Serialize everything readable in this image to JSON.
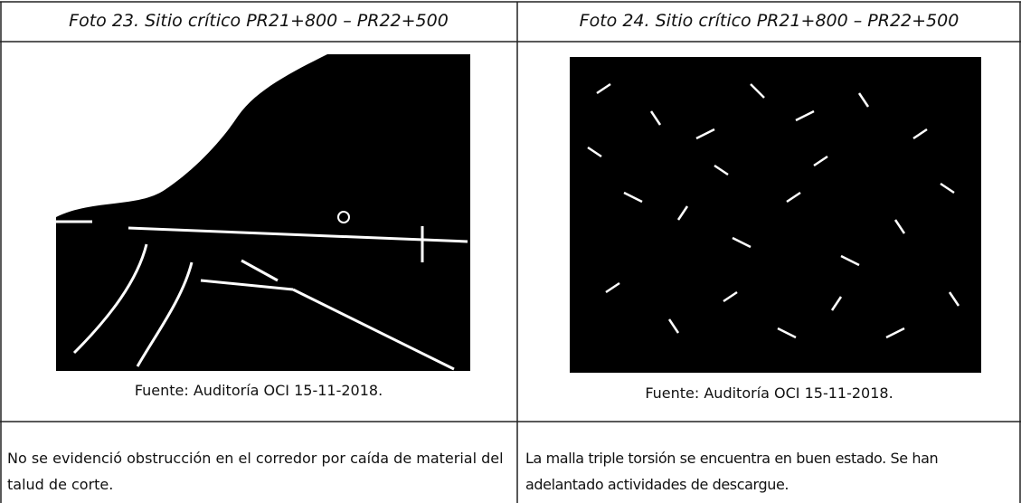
{
  "table": {
    "rows": [
      [
        {
          "title": "Foto 23. Sitio crítico PR21+800 – PR22+500",
          "source": "Fuente: Auditoría OCI 15-11-2018."
        },
        {
          "title": "Foto 24.  Sitio crítico PR21+800 – PR22+500",
          "source": "Fuente: Auditoría OCI 15-11-2018."
        }
      ],
      [
        "No se evidenció obstrucción en el corredor por caída de material del talud de corte.",
        "La malla triple torsión se encuentra en buen estado. Se han adelantado actividades de descargue."
      ]
    ]
  }
}
